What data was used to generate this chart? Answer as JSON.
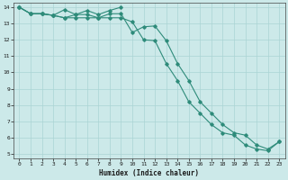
{
  "xlabel": "Humidex (Indice chaleur)",
  "x": [
    0,
    1,
    2,
    3,
    4,
    5,
    6,
    7,
    8,
    9,
    10,
    11,
    12,
    13,
    14,
    15,
    16,
    17,
    18,
    19,
    20,
    21,
    22,
    23
  ],
  "y_max": [
    14.0,
    13.6,
    13.6,
    13.5,
    13.85,
    13.55,
    13.8,
    13.55,
    13.8,
    14.0,
    null,
    null,
    null,
    null,
    null,
    null,
    null,
    null,
    null,
    null,
    null,
    null,
    null,
    null
  ],
  "y_mean": [
    14.0,
    13.6,
    13.6,
    13.5,
    13.35,
    13.55,
    13.55,
    13.35,
    13.6,
    13.6,
    12.45,
    12.8,
    12.85,
    11.95,
    10.55,
    9.5,
    8.2,
    7.5,
    6.8,
    6.3,
    6.15,
    5.55,
    5.3,
    5.75
  ],
  "y_min": [
    14.0,
    13.6,
    13.6,
    13.5,
    13.35,
    13.35,
    13.35,
    13.35,
    13.35,
    13.35,
    13.1,
    12.0,
    11.95,
    10.55,
    9.5,
    8.2,
    7.5,
    6.8,
    6.3,
    6.15,
    5.55,
    5.3,
    5.2,
    5.75
  ],
  "line_color": "#2e8b7a",
  "bg_color": "#cce9e9",
  "grid_color": "#aad4d4",
  "ylim": [
    5,
    14
  ],
  "xlim": [
    0,
    23
  ]
}
